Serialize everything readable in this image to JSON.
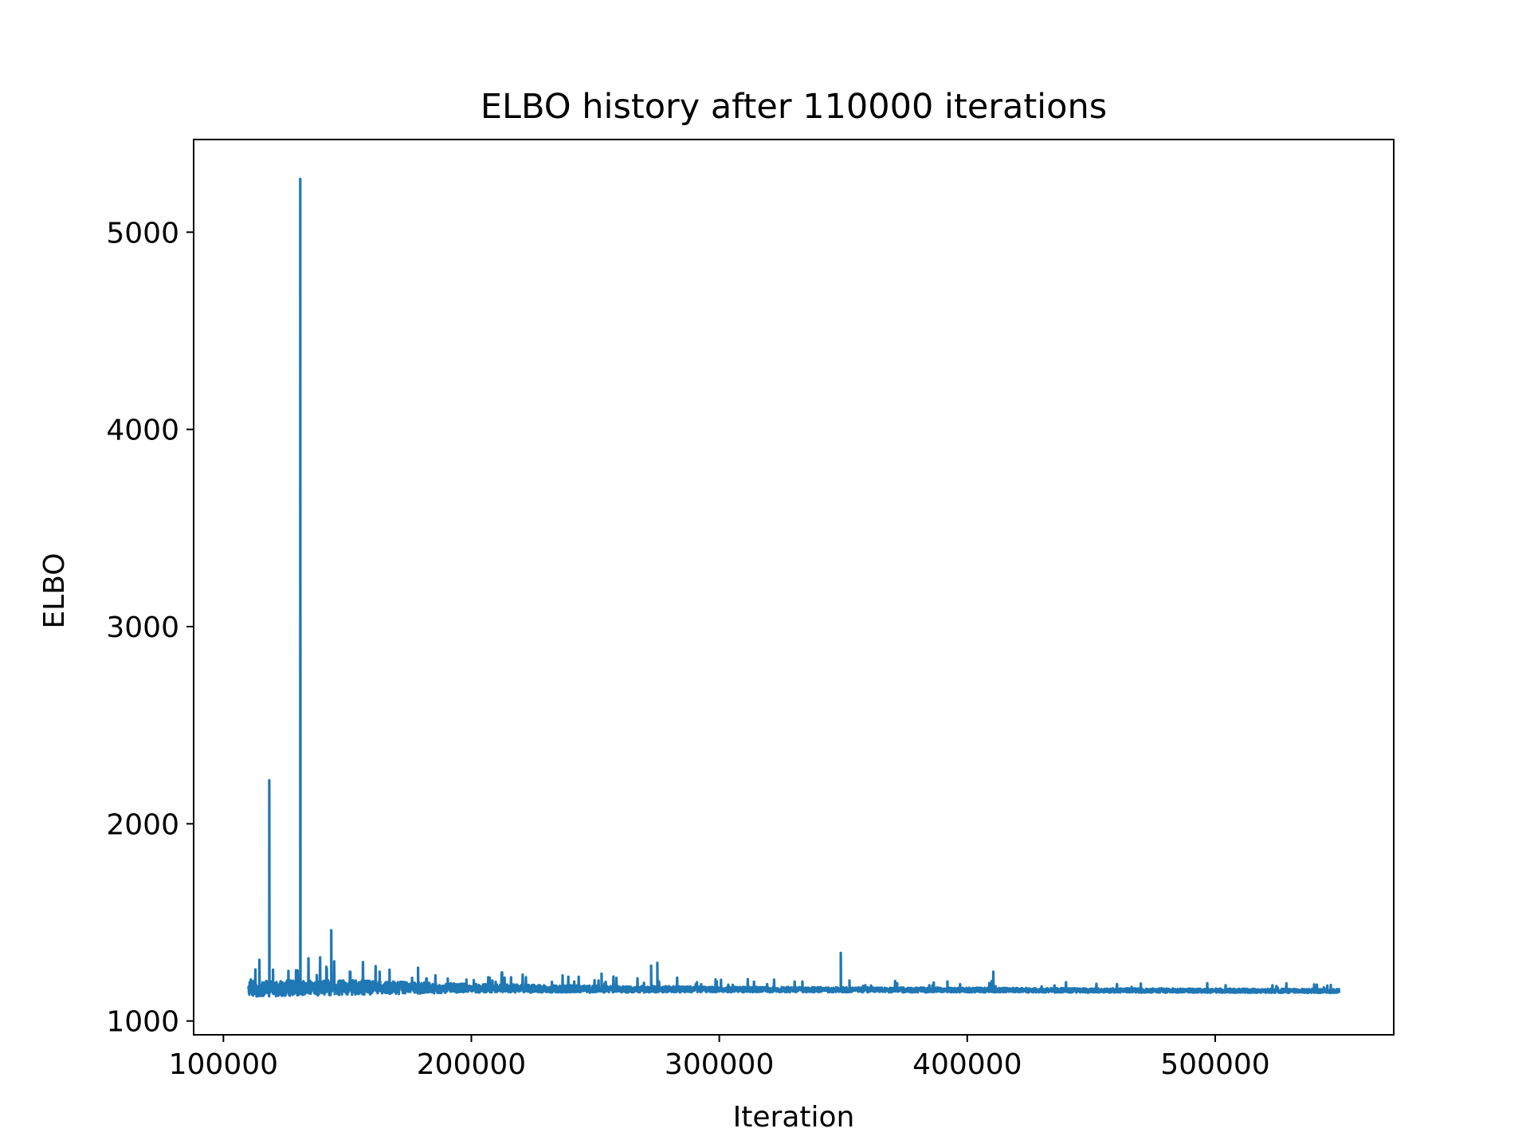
{
  "chart_data": {
    "type": "line",
    "title": "ELBO history after 110000 iterations",
    "xlabel": "Iteration",
    "ylabel": "ELBO",
    "xlim": [
      88000,
      572000
    ],
    "ylim": [
      930,
      5470
    ],
    "xticks": [
      100000,
      200000,
      300000,
      400000,
      500000
    ],
    "yticks": [
      1000,
      2000,
      3000,
      4000,
      5000
    ],
    "x_range": [
      110000,
      550000
    ],
    "grid": false,
    "legend": "none",
    "series": [
      {
        "color": "#1f77b4",
        "baseline": [
          [
            110000,
            1162
          ],
          [
            130000,
            1168
          ],
          [
            150000,
            1170
          ],
          [
            200000,
            1166
          ],
          [
            250000,
            1162
          ],
          [
            300000,
            1160
          ],
          [
            350000,
            1158
          ],
          [
            400000,
            1157
          ],
          [
            450000,
            1155
          ],
          [
            500000,
            1154
          ],
          [
            550000,
            1152
          ]
        ],
        "band": [
          [
            110000,
            40
          ],
          [
            150000,
            38
          ],
          [
            200000,
            22
          ],
          [
            250000,
            18
          ],
          [
            300000,
            14
          ],
          [
            400000,
            12
          ],
          [
            550000,
            10
          ]
        ],
        "spikes": [
          [
            111000,
            1210
          ],
          [
            114500,
            1310
          ],
          [
            118500,
            2220
          ],
          [
            120000,
            1260
          ],
          [
            131000,
            5270
          ],
          [
            141500,
            1275
          ],
          [
            143500,
            1460
          ],
          [
            151000,
            1250
          ],
          [
            163000,
            1250
          ],
          [
            167000,
            1260
          ],
          [
            178500,
            1270
          ],
          [
            182000,
            1215
          ],
          [
            190500,
            1215
          ],
          [
            198000,
            1210
          ],
          [
            208500,
            1205
          ],
          [
            252500,
            1240
          ],
          [
            272500,
            1280
          ],
          [
            275000,
            1295
          ],
          [
            299000,
            1200
          ],
          [
            333500,
            1200
          ],
          [
            349000,
            1345
          ],
          [
            352500,
            1205
          ],
          [
            392000,
            1200
          ],
          [
            410500,
            1250
          ],
          [
            470000,
            1190
          ]
        ]
      }
    ]
  }
}
